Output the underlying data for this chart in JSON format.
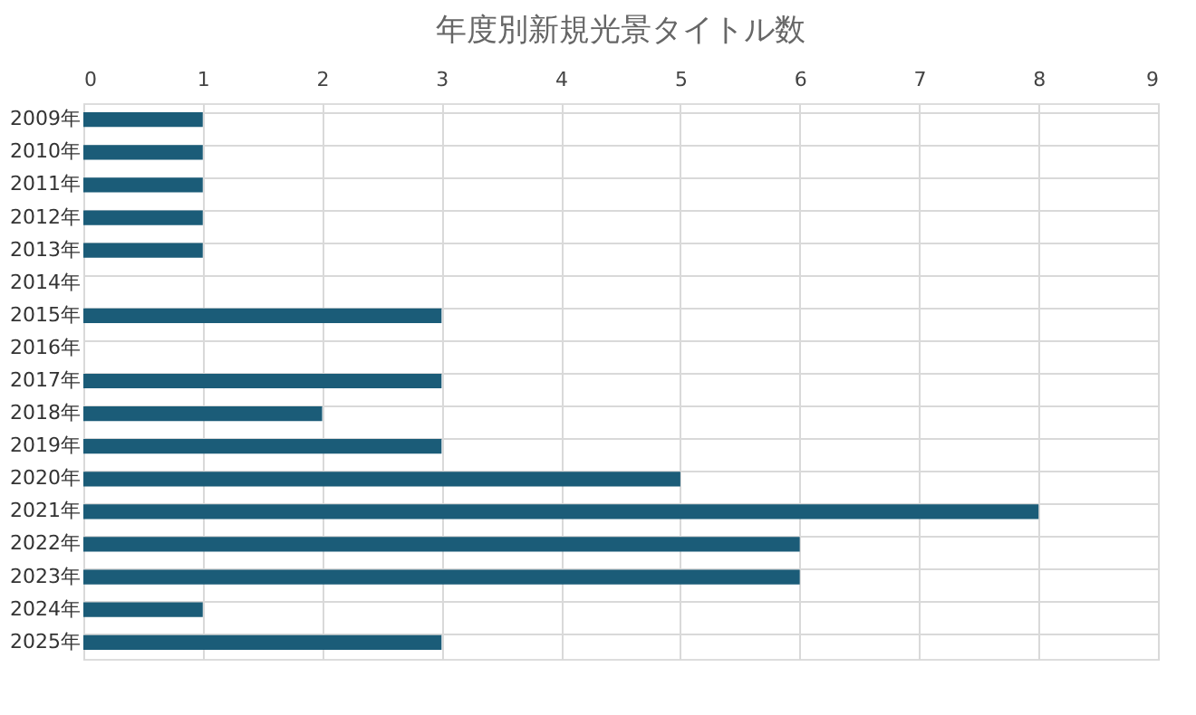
{
  "chart_data": {
    "type": "bar",
    "orientation": "horizontal",
    "title": "年度別新規光景タイトル数",
    "categories": [
      "2009年",
      "2010年",
      "2011年",
      "2012年",
      "2013年",
      "2014年",
      "2015年",
      "2016年",
      "2017年",
      "2018年",
      "2019年",
      "2020年",
      "2021年",
      "2022年",
      "2023年",
      "2024年",
      "2025年"
    ],
    "values": [
      1,
      1,
      1,
      1,
      1,
      0,
      3,
      0,
      3,
      2,
      3,
      5,
      8,
      6,
      6,
      1,
      3
    ],
    "color": "#1b5c78",
    "xlim": [
      0,
      9
    ],
    "xticks": [
      0,
      1,
      2,
      3,
      4,
      5,
      6,
      7,
      8,
      9
    ],
    "grid": true
  }
}
